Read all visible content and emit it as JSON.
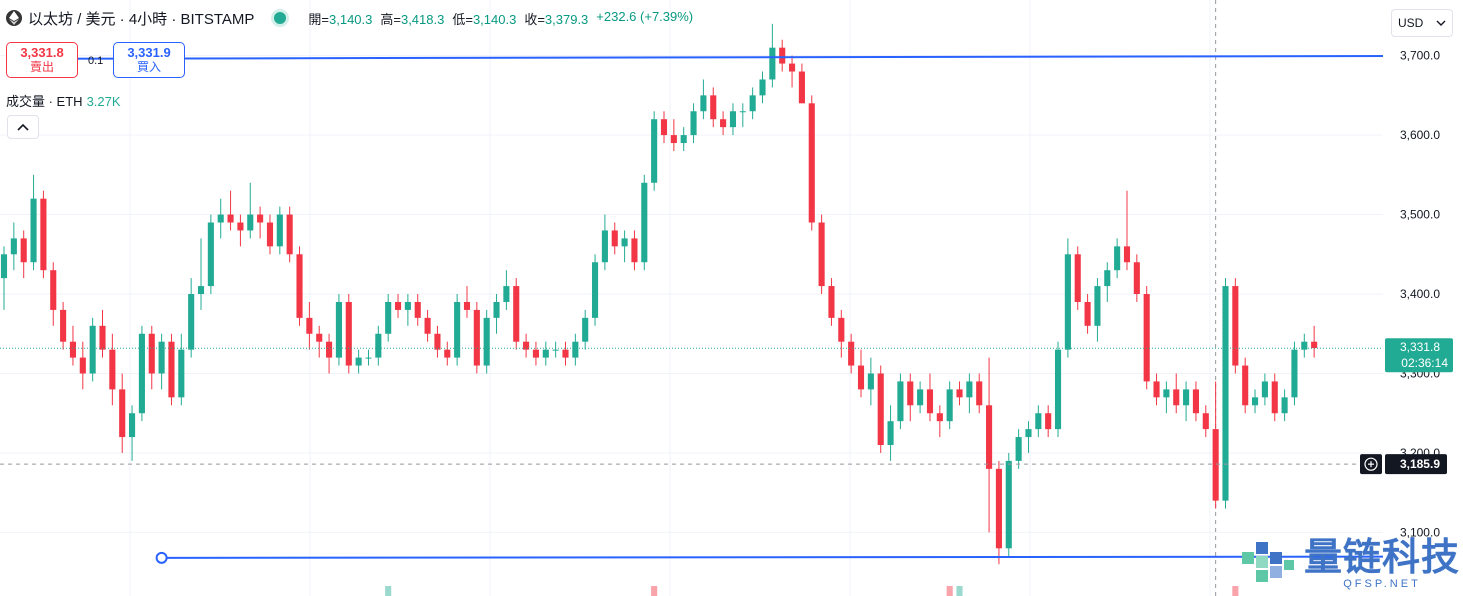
{
  "header": {
    "symbol": "以太坊 / 美元 · 4小時 · BITSTAMP",
    "open_label": "開=",
    "open": "3,140.3",
    "high_label": "高=",
    "high": "3,418.3",
    "low_label": "低=",
    "low": "3,140.3",
    "close_label": "收=",
    "close": "3,379.3",
    "change": "+232.6 (+7.39%)"
  },
  "trade": {
    "sell_price": "3,331.8",
    "sell_label": "賣出",
    "spread": "0.1",
    "buy_price": "3,331.9",
    "buy_label": "買入"
  },
  "volume": {
    "label": "成交量 · ETH",
    "value": "3.27K"
  },
  "currency": "USD",
  "watermark": {
    "name": "量链科技",
    "site": "QFSP.NET"
  },
  "colors": {
    "up": "#22ab94",
    "down": "#f23645",
    "drawing": "#2962ff"
  },
  "chart_data": {
    "type": "candlestick",
    "ylim": [
      3020,
      3770
    ],
    "y_ticks": [
      3100,
      3200,
      3300,
      3400,
      3500,
      3600,
      3700
    ],
    "y_tick_labels": [
      "3,100.0",
      "3,200.0",
      "3,300.0",
      "3,400.0",
      "3,500.0",
      "3,600.0",
      "3,700.0"
    ],
    "current_price": 3331.8,
    "current_price_label": "3,331.8",
    "countdown": "02:36:14",
    "crosshair_price": 3185.9,
    "crosshair_label": "3,185.9",
    "trendlines": [
      {
        "from": [
          1,
          3696
        ],
        "to": [
          200,
          3701
        ]
      },
      {
        "from": [
          16,
          3068
        ],
        "to": [
          185,
          3070
        ]
      }
    ],
    "candles": [
      [
        3420,
        3460,
        3380,
        3450
      ],
      [
        3450,
        3490,
        3430,
        3470
      ],
      [
        3470,
        3480,
        3420,
        3440
      ],
      [
        3440,
        3550,
        3430,
        3520
      ],
      [
        3520,
        3530,
        3420,
        3430
      ],
      [
        3430,
        3440,
        3360,
        3380
      ],
      [
        3380,
        3390,
        3330,
        3340
      ],
      [
        3340,
        3360,
        3310,
        3320
      ],
      [
        3320,
        3340,
        3280,
        3300
      ],
      [
        3300,
        3370,
        3290,
        3360
      ],
      [
        3360,
        3380,
        3320,
        3330
      ],
      [
        3330,
        3350,
        3260,
        3280
      ],
      [
        3280,
        3300,
        3200,
        3220
      ],
      [
        3220,
        3260,
        3190,
        3250
      ],
      [
        3250,
        3360,
        3240,
        3350
      ],
      [
        3350,
        3360,
        3280,
        3300
      ],
      [
        3300,
        3350,
        3280,
        3340
      ],
      [
        3340,
        3350,
        3260,
        3270
      ],
      [
        3270,
        3350,
        3260,
        3330
      ],
      [
        3330,
        3420,
        3320,
        3400
      ],
      [
        3400,
        3470,
        3380,
        3410
      ],
      [
        3410,
        3500,
        3400,
        3490
      ],
      [
        3490,
        3520,
        3470,
        3500
      ],
      [
        3500,
        3530,
        3480,
        3490
      ],
      [
        3490,
        3500,
        3460,
        3480
      ],
      [
        3480,
        3540,
        3470,
        3500
      ],
      [
        3500,
        3510,
        3470,
        3490
      ],
      [
        3490,
        3500,
        3450,
        3460
      ],
      [
        3460,
        3510,
        3450,
        3500
      ],
      [
        3500,
        3510,
        3440,
        3450
      ],
      [
        3450,
        3460,
        3360,
        3370
      ],
      [
        3370,
        3390,
        3330,
        3350
      ],
      [
        3350,
        3360,
        3320,
        3340
      ],
      [
        3340,
        3350,
        3300,
        3320
      ],
      [
        3320,
        3400,
        3310,
        3390
      ],
      [
        3390,
        3400,
        3300,
        3310
      ],
      [
        3310,
        3330,
        3300,
        3320
      ],
      [
        3320,
        3330,
        3310,
        3320
      ],
      [
        3320,
        3360,
        3310,
        3350
      ],
      [
        3350,
        3400,
        3340,
        3390
      ],
      [
        3390,
        3400,
        3370,
        3380
      ],
      [
        3380,
        3400,
        3360,
        3390
      ],
      [
        3390,
        3400,
        3360,
        3370
      ],
      [
        3370,
        3380,
        3340,
        3350
      ],
      [
        3350,
        3360,
        3320,
        3330
      ],
      [
        3330,
        3340,
        3310,
        3320
      ],
      [
        3320,
        3400,
        3310,
        3390
      ],
      [
        3390,
        3410,
        3370,
        3380
      ],
      [
        3380,
        3390,
        3300,
        3310
      ],
      [
        3310,
        3380,
        3300,
        3370
      ],
      [
        3370,
        3400,
        3350,
        3390
      ],
      [
        3390,
        3430,
        3380,
        3410
      ],
      [
        3410,
        3420,
        3330,
        3340
      ],
      [
        3340,
        3350,
        3320,
        3330
      ],
      [
        3330,
        3340,
        3310,
        3320
      ],
      [
        3320,
        3340,
        3310,
        3330
      ],
      [
        3330,
        3340,
        3320,
        3330
      ],
      [
        3330,
        3340,
        3310,
        3320
      ],
      [
        3320,
        3350,
        3310,
        3340
      ],
      [
        3340,
        3380,
        3330,
        3370
      ],
      [
        3370,
        3450,
        3360,
        3440
      ],
      [
        3440,
        3500,
        3430,
        3480
      ],
      [
        3480,
        3490,
        3450,
        3460
      ],
      [
        3460,
        3480,
        3440,
        3470
      ],
      [
        3470,
        3480,
        3430,
        3440
      ],
      [
        3440,
        3550,
        3430,
        3540
      ],
      [
        3540,
        3630,
        3530,
        3620
      ],
      [
        3620,
        3630,
        3590,
        3600
      ],
      [
        3600,
        3620,
        3580,
        3590
      ],
      [
        3590,
        3610,
        3580,
        3600
      ],
      [
        3600,
        3640,
        3590,
        3630
      ],
      [
        3630,
        3670,
        3620,
        3650
      ],
      [
        3650,
        3660,
        3610,
        3620
      ],
      [
        3620,
        3630,
        3600,
        3610
      ],
      [
        3610,
        3640,
        3600,
        3630
      ],
      [
        3630,
        3640,
        3610,
        3630
      ],
      [
        3630,
        3660,
        3620,
        3650
      ],
      [
        3650,
        3680,
        3640,
        3670
      ],
      [
        3670,
        3740,
        3660,
        3710
      ],
      [
        3710,
        3720,
        3680,
        3690
      ],
      [
        3690,
        3700,
        3660,
        3680
      ],
      [
        3680,
        3690,
        3640,
        3640
      ],
      [
        3640,
        3650,
        3480,
        3490
      ],
      [
        3490,
        3500,
        3400,
        3410
      ],
      [
        3410,
        3420,
        3360,
        3370
      ],
      [
        3370,
        3380,
        3320,
        3340
      ],
      [
        3340,
        3350,
        3300,
        3310
      ],
      [
        3310,
        3330,
        3270,
        3280
      ],
      [
        3280,
        3320,
        3260,
        3300
      ],
      [
        3300,
        3310,
        3200,
        3210
      ],
      [
        3210,
        3260,
        3190,
        3240
      ],
      [
        3240,
        3300,
        3230,
        3290
      ],
      [
        3290,
        3300,
        3240,
        3260
      ],
      [
        3260,
        3290,
        3250,
        3280
      ],
      [
        3280,
        3300,
        3240,
        3250
      ],
      [
        3250,
        3260,
        3220,
        3240
      ],
      [
        3240,
        3290,
        3230,
        3280
      ],
      [
        3280,
        3290,
        3260,
        3270
      ],
      [
        3270,
        3300,
        3250,
        3290
      ],
      [
        3290,
        3300,
        3250,
        3260
      ],
      [
        3260,
        3320,
        3100,
        3180
      ],
      [
        3180,
        3190,
        3060,
        3080
      ],
      [
        3080,
        3200,
        3070,
        3190
      ],
      [
        3190,
        3230,
        3180,
        3220
      ],
      [
        3220,
        3240,
        3200,
        3230
      ],
      [
        3230,
        3260,
        3220,
        3250
      ],
      [
        3250,
        3260,
        3220,
        3230
      ],
      [
        3230,
        3340,
        3220,
        3330
      ],
      [
        3330,
        3470,
        3320,
        3450
      ],
      [
        3450,
        3460,
        3380,
        3390
      ],
      [
        3390,
        3400,
        3350,
        3360
      ],
      [
        3360,
        3420,
        3340,
        3410
      ],
      [
        3410,
        3440,
        3390,
        3430
      ],
      [
        3430,
        3470,
        3420,
        3460
      ],
      [
        3460,
        3530,
        3430,
        3440
      ],
      [
        3440,
        3450,
        3390,
        3400
      ],
      [
        3400,
        3410,
        3280,
        3290
      ],
      [
        3290,
        3300,
        3260,
        3270
      ],
      [
        3270,
        3290,
        3250,
        3280
      ],
      [
        3280,
        3300,
        3250,
        3260
      ],
      [
        3260,
        3290,
        3240,
        3280
      ],
      [
        3280,
        3290,
        3240,
        3250
      ],
      [
        3250,
        3260,
        3220,
        3230
      ],
      [
        3230,
        3290,
        3130,
        3140
      ],
      [
        3140,
        3420,
        3130,
        3410
      ],
      [
        3410,
        3420,
        3300,
        3310
      ],
      [
        3310,
        3320,
        3250,
        3260
      ],
      [
        3260,
        3280,
        3250,
        3270
      ],
      [
        3270,
        3300,
        3260,
        3290
      ],
      [
        3290,
        3300,
        3240,
        3250
      ],
      [
        3250,
        3280,
        3240,
        3270
      ],
      [
        3270,
        3340,
        3260,
        3330
      ],
      [
        3330,
        3350,
        3320,
        3340
      ],
      [
        3340,
        3360,
        3320,
        3332
      ]
    ]
  }
}
